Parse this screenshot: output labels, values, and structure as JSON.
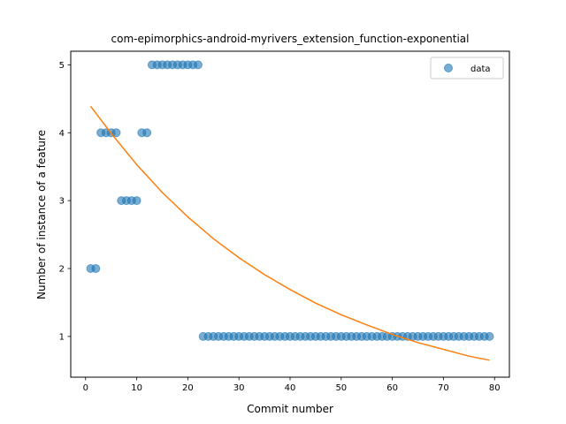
{
  "chart_data": {
    "type": "scatter",
    "title": "com-epimorphics-android-myrivers_extension_function-exponential",
    "xlabel": "Commit number",
    "ylabel": "Number of instance of a feature",
    "xlim": [
      -2.9,
      82.9
    ],
    "ylim": [
      0.4,
      5.2
    ],
    "xticks": [
      0,
      10,
      20,
      30,
      40,
      50,
      60,
      70,
      80
    ],
    "yticks": [
      1,
      2,
      3,
      4,
      5
    ],
    "grid": false,
    "legend_position": "top-right",
    "series": [
      {
        "name": "data",
        "kind": "scatter",
        "color": "#1f77b4",
        "x": [
          1,
          2,
          3,
          4,
          5,
          6,
          7,
          8,
          9,
          10,
          11,
          12,
          13,
          14,
          15,
          16,
          17,
          18,
          19,
          20,
          21,
          22,
          23,
          24,
          25,
          26,
          27,
          28,
          29,
          30,
          31,
          32,
          33,
          34,
          35,
          36,
          37,
          38,
          39,
          40,
          41,
          42,
          43,
          44,
          45,
          46,
          47,
          48,
          49,
          50,
          51,
          52,
          53,
          54,
          55,
          56,
          57,
          58,
          59,
          60,
          61,
          62,
          63,
          64,
          65,
          66,
          67,
          68,
          69,
          70,
          71,
          72,
          73,
          74,
          75,
          76,
          77,
          78,
          79
        ],
        "y": [
          2,
          2,
          4,
          4,
          4,
          4,
          3,
          3,
          3,
          3,
          4,
          4,
          5,
          5,
          5,
          5,
          5,
          5,
          5,
          5,
          5,
          5,
          1,
          1,
          1,
          1,
          1,
          1,
          1,
          1,
          1,
          1,
          1,
          1,
          1,
          1,
          1,
          1,
          1,
          1,
          1,
          1,
          1,
          1,
          1,
          1,
          1,
          1,
          1,
          1,
          1,
          1,
          1,
          1,
          1,
          1,
          1,
          1,
          1,
          1,
          1,
          1,
          1,
          1,
          1,
          1,
          1,
          1,
          1,
          1,
          1,
          1,
          1,
          1,
          1,
          1,
          1,
          1,
          1
        ]
      },
      {
        "kind": "line",
        "color": "#ff7f0e",
        "x": [
          1,
          5,
          10,
          15,
          20,
          25,
          30,
          35,
          40,
          45,
          50,
          55,
          60,
          65,
          70,
          75,
          79
        ],
        "y": [
          4.39,
          3.99,
          3.53,
          3.12,
          2.76,
          2.44,
          2.16,
          1.91,
          1.69,
          1.49,
          1.32,
          1.17,
          1.03,
          0.91,
          0.81,
          0.71,
          0.65
        ]
      }
    ]
  }
}
